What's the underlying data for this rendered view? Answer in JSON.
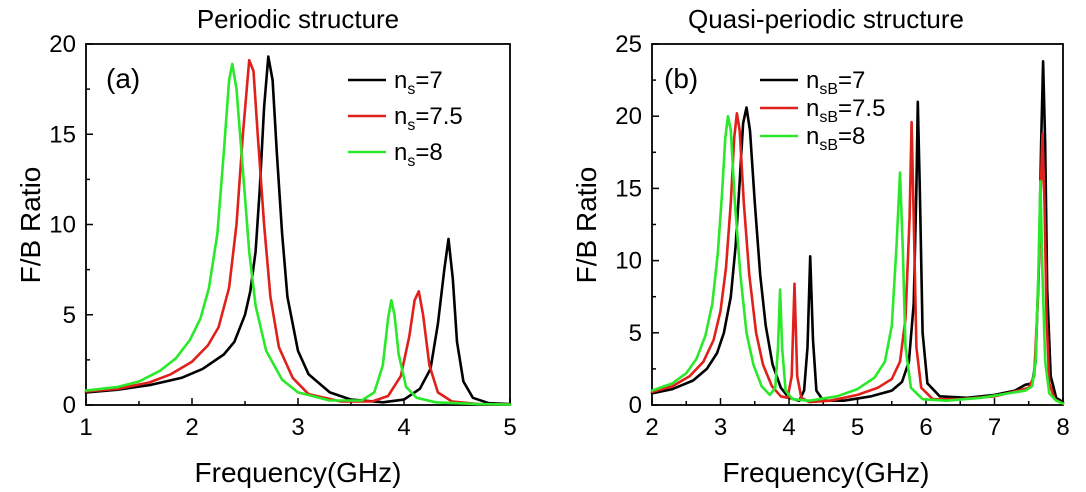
{
  "chart_data": [
    {
      "type": "line",
      "title": "Periodic structure",
      "panel_label": "(a)",
      "xlabel": "Frequency(GHz)",
      "ylabel": "F/B Ratio",
      "xlim": [
        1,
        5
      ],
      "ylim": [
        0,
        20
      ],
      "xticks": [
        1,
        2,
        3,
        4,
        5
      ],
      "yticks": [
        0,
        5,
        10,
        15,
        20
      ],
      "grid": false,
      "legend_position": "top-right",
      "series": [
        {
          "name_main": "n",
          "name_sub": "s",
          "name_tail": "=7",
          "color": "#000000",
          "points": [
            [
              1.0,
              0.7
            ],
            [
              1.3,
              0.85
            ],
            [
              1.6,
              1.1
            ],
            [
              1.9,
              1.5
            ],
            [
              2.1,
              2.0
            ],
            [
              2.3,
              2.8
            ],
            [
              2.4,
              3.5
            ],
            [
              2.5,
              5.0
            ],
            [
              2.55,
              6.3
            ],
            [
              2.6,
              8.5
            ],
            [
              2.64,
              12.0
            ],
            [
              2.68,
              16.5
            ],
            [
              2.72,
              19.3
            ],
            [
              2.76,
              18.0
            ],
            [
              2.8,
              14.0
            ],
            [
              2.85,
              9.5
            ],
            [
              2.9,
              6.0
            ],
            [
              3.0,
              3.0
            ],
            [
              3.1,
              1.7
            ],
            [
              3.3,
              0.7
            ],
            [
              3.5,
              0.3
            ],
            [
              3.8,
              0.15
            ],
            [
              4.0,
              0.3
            ],
            [
              4.15,
              0.9
            ],
            [
              4.25,
              2.0
            ],
            [
              4.32,
              4.5
            ],
            [
              4.38,
              7.5
            ],
            [
              4.42,
              9.2
            ],
            [
              4.46,
              7.0
            ],
            [
              4.5,
              3.5
            ],
            [
              4.56,
              1.3
            ],
            [
              4.65,
              0.4
            ],
            [
              4.8,
              0.1
            ],
            [
              5.0,
              0.05
            ]
          ]
        },
        {
          "name_main": "n",
          "name_sub": "s",
          "name_tail": "=7.5",
          "color": "#e0201a",
          "points": [
            [
              1.0,
              0.75
            ],
            [
              1.3,
              0.9
            ],
            [
              1.6,
              1.25
            ],
            [
              1.8,
              1.7
            ],
            [
              2.0,
              2.4
            ],
            [
              2.15,
              3.3
            ],
            [
              2.25,
              4.3
            ],
            [
              2.35,
              6.5
            ],
            [
              2.42,
              10.0
            ],
            [
              2.48,
              15.0
            ],
            [
              2.54,
              19.1
            ],
            [
              2.58,
              18.5
            ],
            [
              2.62,
              15.0
            ],
            [
              2.68,
              10.0
            ],
            [
              2.74,
              6.0
            ],
            [
              2.82,
              3.2
            ],
            [
              2.95,
              1.5
            ],
            [
              3.1,
              0.6
            ],
            [
              3.4,
              0.2
            ],
            [
              3.7,
              0.2
            ],
            [
              3.85,
              0.5
            ],
            [
              3.97,
              1.6
            ],
            [
              4.05,
              3.8
            ],
            [
              4.1,
              5.8
            ],
            [
              4.14,
              6.3
            ],
            [
              4.18,
              5.0
            ],
            [
              4.24,
              2.2
            ],
            [
              4.32,
              0.7
            ],
            [
              4.45,
              0.2
            ],
            [
              4.7,
              0.05
            ],
            [
              5.0,
              0.02
            ]
          ]
        },
        {
          "name_main": "n",
          "name_sub": "s",
          "name_tail": "=8",
          "color": "#2ae82a",
          "points": [
            [
              1.0,
              0.8
            ],
            [
              1.3,
              1.0
            ],
            [
              1.5,
              1.3
            ],
            [
              1.7,
              1.9
            ],
            [
              1.85,
              2.6
            ],
            [
              1.98,
              3.6
            ],
            [
              2.08,
              4.8
            ],
            [
              2.16,
              6.5
            ],
            [
              2.24,
              9.5
            ],
            [
              2.3,
              14.0
            ],
            [
              2.35,
              18.0
            ],
            [
              2.38,
              18.9
            ],
            [
              2.42,
              17.5
            ],
            [
              2.48,
              13.0
            ],
            [
              2.54,
              8.5
            ],
            [
              2.6,
              5.5
            ],
            [
              2.7,
              3.0
            ],
            [
              2.85,
              1.4
            ],
            [
              3.0,
              0.7
            ],
            [
              3.3,
              0.25
            ],
            [
              3.6,
              0.25
            ],
            [
              3.72,
              0.7
            ],
            [
              3.8,
              2.2
            ],
            [
              3.85,
              4.8
            ],
            [
              3.88,
              5.8
            ],
            [
              3.91,
              5.0
            ],
            [
              3.95,
              2.8
            ],
            [
              4.02,
              1.0
            ],
            [
              4.12,
              0.4
            ],
            [
              4.3,
              0.15
            ],
            [
              4.7,
              0.05
            ],
            [
              5.0,
              0.02
            ]
          ]
        }
      ]
    },
    {
      "type": "line",
      "title": "Quasi-periodic structure",
      "panel_label": "(b)",
      "xlabel": "Frequency(GHz)",
      "ylabel": "F/B Ratio",
      "xlim": [
        2,
        8
      ],
      "ylim": [
        0,
        25
      ],
      "xticks": [
        2,
        3,
        4,
        5,
        6,
        7,
        8
      ],
      "yticks": [
        0,
        5,
        10,
        15,
        20,
        25
      ],
      "grid": false,
      "legend_position": "top-center",
      "series": [
        {
          "name_main": "n",
          "name_sub": "sB",
          "name_tail": "=7",
          "color": "#000000",
          "points": [
            [
              2.0,
              0.8
            ],
            [
              2.3,
              1.1
            ],
            [
              2.6,
              1.7
            ],
            [
              2.8,
              2.5
            ],
            [
              2.95,
              3.6
            ],
            [
              3.05,
              5.0
            ],
            [
              3.15,
              7.5
            ],
            [
              3.22,
              11.0
            ],
            [
              3.28,
              15.5
            ],
            [
              3.33,
              19.5
            ],
            [
              3.38,
              20.6
            ],
            [
              3.43,
              19.0
            ],
            [
              3.5,
              14.0
            ],
            [
              3.58,
              9.0
            ],
            [
              3.66,
              5.5
            ],
            [
              3.76,
              2.8
            ],
            [
              3.88,
              1.2
            ],
            [
              4.0,
              0.5
            ],
            [
              4.15,
              0.3
            ],
            [
              4.22,
              1.0
            ],
            [
              4.27,
              4.0
            ],
            [
              4.31,
              10.3
            ],
            [
              4.35,
              4.5
            ],
            [
              4.4,
              1.0
            ],
            [
              4.5,
              0.3
            ],
            [
              4.8,
              0.3
            ],
            [
              5.2,
              0.6
            ],
            [
              5.5,
              1.0
            ],
            [
              5.65,
              1.6
            ],
            [
              5.75,
              3.0
            ],
            [
              5.82,
              7.0
            ],
            [
              5.86,
              15.0
            ],
            [
              5.88,
              21.0
            ],
            [
              5.91,
              15.0
            ],
            [
              5.95,
              5.0
            ],
            [
              6.02,
              1.5
            ],
            [
              6.2,
              0.6
            ],
            [
              6.6,
              0.5
            ],
            [
              7.0,
              0.7
            ],
            [
              7.3,
              1.0
            ],
            [
              7.45,
              1.4
            ],
            [
              7.55,
              1.5
            ],
            [
              7.6,
              3.0
            ],
            [
              7.65,
              10.0
            ],
            [
              7.68,
              18.0
            ],
            [
              7.71,
              23.8
            ],
            [
              7.74,
              18.0
            ],
            [
              7.77,
              8.0
            ],
            [
              7.82,
              2.0
            ],
            [
              7.9,
              0.5
            ],
            [
              8.0,
              0.2
            ]
          ]
        },
        {
          "name_main": "n",
          "name_sub": "sB",
          "name_tail": "=7.5",
          "color": "#e0201a",
          "points": [
            [
              2.0,
              0.9
            ],
            [
              2.3,
              1.3
            ],
            [
              2.55,
              2.0
            ],
            [
              2.75,
              3.0
            ],
            [
              2.9,
              4.5
            ],
            [
              3.0,
              6.5
            ],
            [
              3.08,
              9.5
            ],
            [
              3.15,
              14.0
            ],
            [
              3.2,
              18.5
            ],
            [
              3.24,
              20.2
            ],
            [
              3.28,
              19.0
            ],
            [
              3.34,
              14.0
            ],
            [
              3.42,
              9.0
            ],
            [
              3.52,
              5.0
            ],
            [
              3.62,
              2.8
            ],
            [
              3.75,
              1.3
            ],
            [
              3.88,
              0.6
            ],
            [
              3.98,
              0.5
            ],
            [
              4.04,
              2.0
            ],
            [
              4.08,
              8.4
            ],
            [
              4.12,
              2.0
            ],
            [
              4.18,
              0.5
            ],
            [
              4.3,
              0.2
            ],
            [
              4.6,
              0.3
            ],
            [
              5.0,
              0.7
            ],
            [
              5.3,
              1.2
            ],
            [
              5.5,
              1.8
            ],
            [
              5.62,
              3.0
            ],
            [
              5.7,
              6.0
            ],
            [
              5.76,
              13.0
            ],
            [
              5.79,
              19.6
            ],
            [
              5.82,
              13.0
            ],
            [
              5.86,
              4.0
            ],
            [
              5.93,
              1.2
            ],
            [
              6.1,
              0.4
            ],
            [
              6.5,
              0.4
            ],
            [
              7.0,
              0.6
            ],
            [
              7.35,
              1.0
            ],
            [
              7.5,
              1.2
            ],
            [
              7.58,
              2.0
            ],
            [
              7.64,
              8.0
            ],
            [
              7.67,
              14.0
            ],
            [
              7.7,
              18.8
            ],
            [
              7.73,
              14.0
            ],
            [
              7.76,
              6.0
            ],
            [
              7.8,
              1.5
            ],
            [
              7.88,
              0.4
            ],
            [
              8.0,
              0.1
            ]
          ]
        },
        {
          "name_main": "n",
          "name_sub": "sB",
          "name_tail": "=8",
          "color": "#2ae82a",
          "points": [
            [
              2.0,
              1.0
            ],
            [
              2.3,
              1.5
            ],
            [
              2.5,
              2.2
            ],
            [
              2.65,
              3.2
            ],
            [
              2.78,
              4.8
            ],
            [
              2.88,
              7.0
            ],
            [
              2.96,
              10.5
            ],
            [
              3.02,
              14.5
            ],
            [
              3.07,
              18.5
            ],
            [
              3.11,
              20.0
            ],
            [
              3.15,
              19.0
            ],
            [
              3.21,
              14.0
            ],
            [
              3.29,
              9.0
            ],
            [
              3.38,
              5.0
            ],
            [
              3.48,
              2.8
            ],
            [
              3.6,
              1.3
            ],
            [
              3.72,
              0.7
            ],
            [
              3.8,
              1.2
            ],
            [
              3.84,
              4.0
            ],
            [
              3.87,
              8.0
            ],
            [
              3.9,
              4.0
            ],
            [
              3.95,
              1.0
            ],
            [
              4.05,
              0.4
            ],
            [
              4.3,
              0.3
            ],
            [
              4.7,
              0.6
            ],
            [
              5.0,
              1.1
            ],
            [
              5.25,
              1.9
            ],
            [
              5.4,
              3.0
            ],
            [
              5.5,
              5.5
            ],
            [
              5.57,
              11.0
            ],
            [
              5.62,
              16.1
            ],
            [
              5.66,
              11.0
            ],
            [
              5.7,
              4.0
            ],
            [
              5.78,
              1.2
            ],
            [
              5.95,
              0.4
            ],
            [
              6.3,
              0.3
            ],
            [
              6.8,
              0.5
            ],
            [
              7.2,
              0.8
            ],
            [
              7.45,
              1.0
            ],
            [
              7.55,
              1.3
            ],
            [
              7.6,
              3.0
            ],
            [
              7.64,
              9.0
            ],
            [
              7.67,
              15.5
            ],
            [
              7.7,
              9.0
            ],
            [
              7.74,
              3.0
            ],
            [
              7.8,
              0.8
            ],
            [
              7.9,
              0.3
            ],
            [
              8.0,
              0.1
            ]
          ]
        }
      ]
    }
  ]
}
